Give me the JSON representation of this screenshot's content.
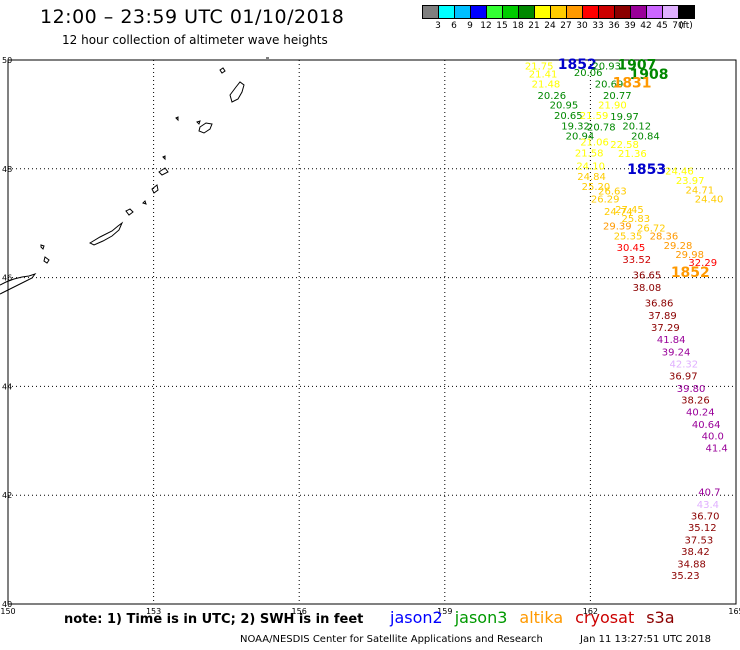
{
  "header": {
    "title": "12:00 – 23:59 UTC 01/10/2018",
    "subtitle": "12 hour collection of altimeter wave heights"
  },
  "legend": {
    "colors": [
      "#7f7f7f",
      "#00ffff",
      "#00bfff",
      "#0000ff",
      "#33ff33",
      "#00cc00",
      "#008800",
      "#ffff00",
      "#ffcc00",
      "#ff9900",
      "#ff0000",
      "#cc0000",
      "#8b0000",
      "#990099",
      "#cc66ff",
      "#e0b0ff",
      "#000000"
    ],
    "labels": [
      "3",
      "6",
      "9",
      "12",
      "15",
      "18",
      "21",
      "24",
      "27",
      "30",
      "33",
      "36",
      "39",
      "42",
      "45",
      "70",
      "(ft)"
    ]
  },
  "map": {
    "lon_labels": [
      "150",
      "153",
      "156",
      "159",
      "162",
      "165"
    ],
    "lat_labels": [
      "50",
      "48",
      "46",
      "44",
      "42",
      "40"
    ]
  },
  "track_labels": [
    {
      "text": "21.75",
      "color": "#ffff00",
      "lon": 161.24,
      "lat": 49.9
    },
    {
      "text": "1852",
      "color": "#0000cc",
      "lon": 162.13,
      "lat": 49.91
    },
    {
      "text": "20.93",
      "color": "#008800",
      "lon": 162.63,
      "lat": 49.9
    },
    {
      "text": "1907",
      "color": "#008800",
      "lon": 163.36,
      "lat": 49.9
    },
    {
      "text": "21.41",
      "color": "#ffff00",
      "lon": 161.32,
      "lat": 49.75
    },
    {
      "text": "20.06",
      "color": "#008800",
      "lon": 162.25,
      "lat": 49.78
    },
    {
      "text": "1908",
      "color": "#008800",
      "lon": 163.61,
      "lat": 49.72
    },
    {
      "text": "21.48",
      "color": "#ffff00",
      "lon": 161.38,
      "lat": 49.57
    },
    {
      "text": "20.69",
      "color": "#008800",
      "lon": 162.68,
      "lat": 49.57
    },
    {
      "text": "1831",
      "color": "#ff9900",
      "lon": 163.26,
      "lat": 49.57
    },
    {
      "text": "20.26",
      "color": "#008800",
      "lon": 161.5,
      "lat": 49.36
    },
    {
      "text": "20.77",
      "color": "#008800",
      "lon": 162.85,
      "lat": 49.36
    },
    {
      "text": "20.95",
      "color": "#008800",
      "lon": 161.75,
      "lat": 49.18
    },
    {
      "text": "21.90",
      "color": "#ffff00",
      "lon": 162.75,
      "lat": 49.18
    },
    {
      "text": "20.65",
      "color": "#008800",
      "lon": 161.84,
      "lat": 48.99
    },
    {
      "text": "21.59",
      "color": "#ffff00",
      "lon": 162.37,
      "lat": 48.99
    },
    {
      "text": "19.97",
      "color": "#008800",
      "lon": 163.0,
      "lat": 48.97
    },
    {
      "text": "19.32",
      "color": "#008800",
      "lon": 161.99,
      "lat": 48.8
    },
    {
      "text": "20.78",
      "color": "#008800",
      "lon": 162.52,
      "lat": 48.78
    },
    {
      "text": "20.12",
      "color": "#008800",
      "lon": 163.25,
      "lat": 48.8
    },
    {
      "text": "20.94",
      "color": "#008800",
      "lon": 162.08,
      "lat": 48.61
    },
    {
      "text": "20.84",
      "color": "#008800",
      "lon": 163.43,
      "lat": 48.61
    },
    {
      "text": "21.06",
      "color": "#ffff00",
      "lon": 162.38,
      "lat": 48.5
    },
    {
      "text": "22.58",
      "color": "#ffff00",
      "lon": 163.0,
      "lat": 48.46
    },
    {
      "text": "21.58",
      "color": "#ffff00",
      "lon": 162.27,
      "lat": 48.3
    },
    {
      "text": "21.36",
      "color": "#ffff00",
      "lon": 163.16,
      "lat": 48.29
    },
    {
      "text": "24.10",
      "color": "#ffff00",
      "lon": 162.3,
      "lat": 48.06
    },
    {
      "text": "1853",
      "color": "#0000cc",
      "lon": 163.56,
      "lat": 47.98
    },
    {
      "text": "24.46",
      "color": "#ffff00",
      "lon": 164.13,
      "lat": 47.97
    },
    {
      "text": "24.84",
      "color": "#ffcc00",
      "lon": 162.32,
      "lat": 47.87
    },
    {
      "text": "23.97",
      "color": "#ffff00",
      "lon": 164.35,
      "lat": 47.79
    },
    {
      "text": "25.20",
      "color": "#ffcc00",
      "lon": 162.41,
      "lat": 47.68
    },
    {
      "text": "24.71",
      "color": "#ffcc00",
      "lon": 164.55,
      "lat": 47.62
    },
    {
      "text": "26.63",
      "color": "#ffcc00",
      "lon": 162.75,
      "lat": 47.6
    },
    {
      "text": "26.29",
      "color": "#ffcc00",
      "lon": 162.6,
      "lat": 47.45
    },
    {
      "text": "24.40",
      "color": "#ffcc00",
      "lon": 164.74,
      "lat": 47.45
    },
    {
      "text": "27.45",
      "color": "#ffcc00",
      "lon": 163.1,
      "lat": 47.26
    },
    {
      "text": "24.74",
      "color": "#ffcc00",
      "lon": 162.87,
      "lat": 47.22
    },
    {
      "text": "25.83",
      "color": "#ffcc00",
      "lon": 163.23,
      "lat": 47.1
    },
    {
      "text": "29.39",
      "color": "#ff9900",
      "lon": 162.85,
      "lat": 46.96
    },
    {
      "text": "26.72",
      "color": "#ffcc00",
      "lon": 163.55,
      "lat": 46.92
    },
    {
      "text": "25.35",
      "color": "#ffcc00",
      "lon": 163.07,
      "lat": 46.77
    },
    {
      "text": "28.36",
      "color": "#ff9900",
      "lon": 163.81,
      "lat": 46.77
    },
    {
      "text": "29.28",
      "color": "#ff9900",
      "lon": 164.1,
      "lat": 46.6
    },
    {
      "text": "30.45",
      "color": "#ff0000",
      "lon": 163.13,
      "lat": 46.56
    },
    {
      "text": "29.98",
      "color": "#ff9900",
      "lon": 164.34,
      "lat": 46.43
    },
    {
      "text": "33.52",
      "color": "#cc0000",
      "lon": 163.25,
      "lat": 46.34
    },
    {
      "text": "32.29",
      "color": "#ff0000",
      "lon": 164.61,
      "lat": 46.29
    },
    {
      "text": "1852",
      "color": "#ff9900",
      "lon": 164.46,
      "lat": 46.08
    },
    {
      "text": "36.65",
      "color": "#8b0000",
      "lon": 163.46,
      "lat": 46.06
    },
    {
      "text": "38.08",
      "color": "#8b0000",
      "lon": 163.46,
      "lat": 45.83
    },
    {
      "text": "36.86",
      "color": "#8b0000",
      "lon": 163.71,
      "lat": 45.54
    },
    {
      "text": "37.89",
      "color": "#8b0000",
      "lon": 163.78,
      "lat": 45.31
    },
    {
      "text": "37.29",
      "color": "#8b0000",
      "lon": 163.84,
      "lat": 45.09
    },
    {
      "text": "41.84",
      "color": "#990099",
      "lon": 163.96,
      "lat": 44.87
    },
    {
      "text": "39.24",
      "color": "#990099",
      "lon": 164.06,
      "lat": 44.64
    },
    {
      "text": "42.32",
      "color": "#e0b0ff",
      "lon": 164.22,
      "lat": 44.42
    },
    {
      "text": "36.97",
      "color": "#8b0000",
      "lon": 164.21,
      "lat": 44.2
    },
    {
      "text": "39.80",
      "color": "#990099",
      "lon": 164.37,
      "lat": 43.97
    },
    {
      "text": "38.26",
      "color": "#8b0000",
      "lon": 164.46,
      "lat": 43.76
    },
    {
      "text": "40.24",
      "color": "#990099",
      "lon": 164.56,
      "lat": 43.54
    },
    {
      "text": "40.64",
      "color": "#990099",
      "lon": 164.68,
      "lat": 43.31
    },
    {
      "text": "40.0",
      "color": "#990099",
      "lon": 164.75,
      "lat": 43.1
    },
    {
      "text": "41.4",
      "color": "#990099",
      "lon": 164.83,
      "lat": 42.88
    },
    {
      "text": "40.7",
      "color": "#990099",
      "lon": 164.68,
      "lat": 42.07
    },
    {
      "text": "43.4",
      "color": "#e0b0ff",
      "lon": 164.65,
      "lat": 41.84
    },
    {
      "text": "36.70",
      "color": "#8b0000",
      "lon": 164.66,
      "lat": 41.63
    },
    {
      "text": "35.12",
      "color": "#8b0000",
      "lon": 164.6,
      "lat": 41.42
    },
    {
      "text": "37.53",
      "color": "#8b0000",
      "lon": 164.53,
      "lat": 41.19
    },
    {
      "text": "38.42",
      "color": "#8b0000",
      "lon": 164.46,
      "lat": 40.97
    },
    {
      "text": "34.88",
      "color": "#8b0000",
      "lon": 164.38,
      "lat": 40.74
    },
    {
      "text": "35.23",
      "color": "#8b0000",
      "lon": 164.25,
      "lat": 40.53
    }
  ],
  "footer": {
    "note": "note:  1) Time is in UTC;  2) SWH is in feet",
    "satellites": [
      {
        "name": "jason2",
        "color": "#0000ff"
      },
      {
        "name": "jason3",
        "color": "#009900"
      },
      {
        "name": "altika",
        "color": "#ff9900"
      },
      {
        "name": "cryosat",
        "color": "#cc0000"
      },
      {
        "name": "s3a",
        "color": "#8b0000"
      }
    ],
    "credit": "NOAA/NESDIS Center for Satellite Applications and Research",
    "timestamp": "Jan 11 13:27:51 UTC 2018"
  }
}
